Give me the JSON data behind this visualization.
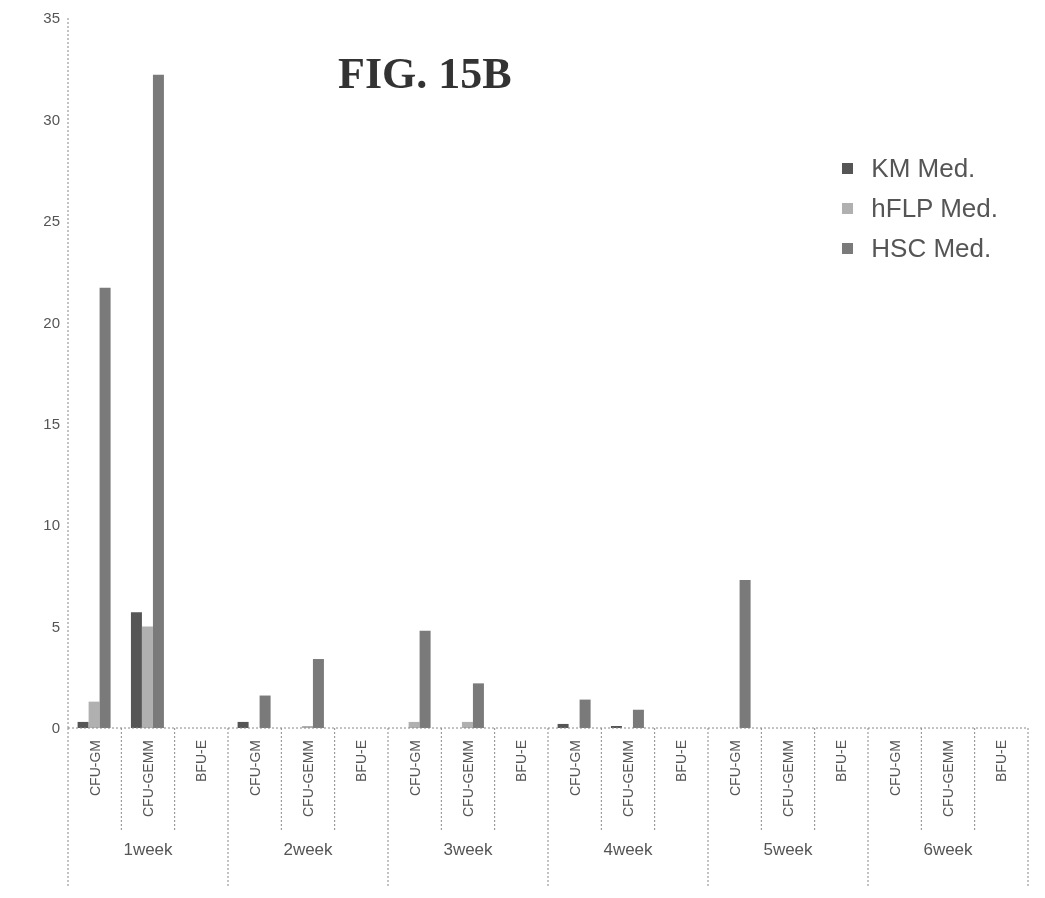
{
  "chart_data": {
    "type": "bar",
    "title": "FIG. 15B",
    "categories": [
      "CFU-GM",
      "CFU-GEMM",
      "BFU-E",
      "CFU-GM",
      "CFU-GEMM",
      "BFU-E",
      "CFU-GM",
      "CFU-GEMM",
      "BFU-E",
      "CFU-GM",
      "CFU-GEMM",
      "BFU-E",
      "CFU-GM",
      "CFU-GEMM",
      "BFU-E",
      "CFU-GM",
      "CFU-GEMM",
      "BFU-E"
    ],
    "series": [
      {
        "name": "KM Med.",
        "color": "#555555",
        "values": [
          0.3,
          5.7,
          0,
          0.3,
          0,
          0,
          0,
          0,
          0,
          0.2,
          0.1,
          0,
          0,
          0,
          0,
          0,
          0,
          0
        ]
      },
      {
        "name": "hFLP Med.",
        "color": "#b0b0b0",
        "values": [
          1.3,
          5.0,
          0,
          0,
          0.1,
          0,
          0.3,
          0.3,
          0,
          0,
          0,
          0,
          0,
          0,
          0,
          0,
          0,
          0
        ]
      },
      {
        "name": "HSC Med.",
        "color": "#7a7a7a",
        "values": [
          21.7,
          32.2,
          0,
          1.6,
          3.4,
          0,
          4.8,
          2.2,
          0,
          1.4,
          0.9,
          0,
          7.3,
          0,
          0,
          0,
          0,
          0
        ]
      }
    ],
    "annotations": [
      "1week",
      "2week",
      "3week",
      "4week",
      "5week",
      "6week"
    ],
    "ylim": [
      0,
      35
    ],
    "yticks": [
      0,
      5,
      10,
      15,
      20,
      25,
      30,
      35
    ],
    "grid": false,
    "legend": "top right"
  }
}
